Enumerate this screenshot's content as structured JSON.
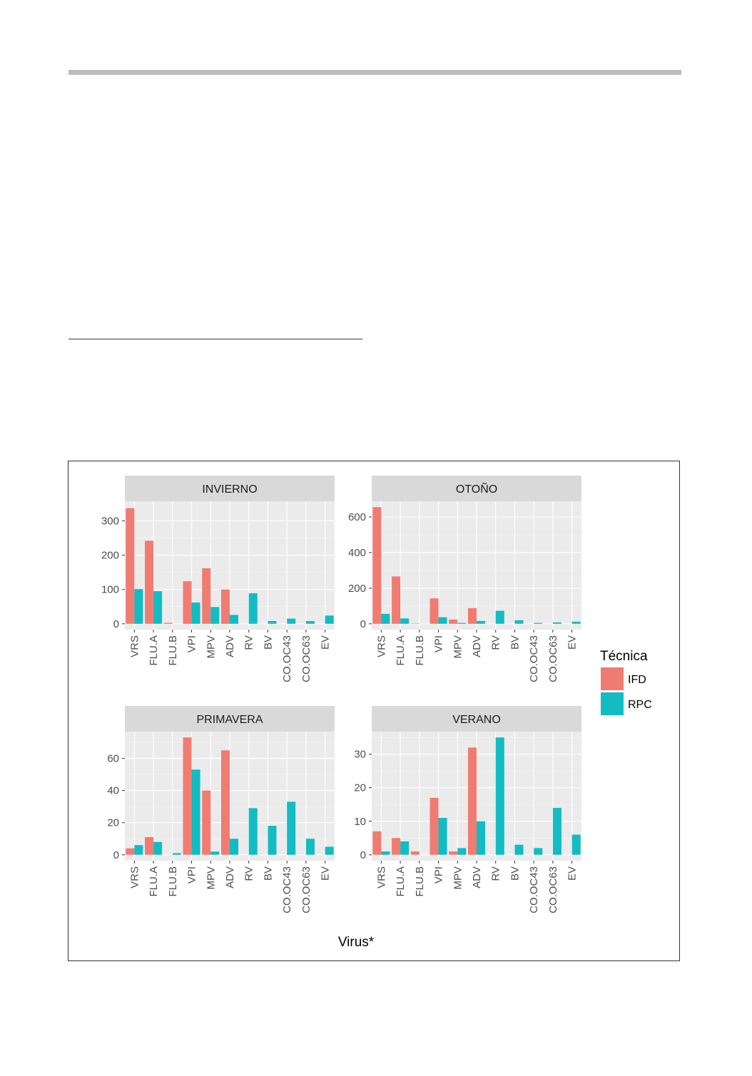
{
  "chart_data": {
    "type": "bar",
    "xlabel": "Virus*",
    "legend": {
      "title": "Técnica",
      "position": "right",
      "entries": [
        "IFD",
        "RPC"
      ]
    },
    "colors": {
      "IFD": "#f07b72",
      "RPC": "#12bcc2"
    },
    "categories": [
      "VRS",
      "FLU.A",
      "FLU.B",
      "VPI",
      "MPV",
      "ADV",
      "RV",
      "BV",
      "CO.OC43",
      "CO.OC63",
      "EV"
    ],
    "grid": true,
    "panels": [
      {
        "title": "INVIERNO",
        "ylim": [
          0,
          340
        ],
        "yticks": [
          0,
          100,
          200,
          300
        ],
        "series": [
          {
            "name": "IFD",
            "values": [
              337,
              242,
              3,
              124,
              162,
              100,
              0,
              0,
              0,
              0,
              0
            ]
          },
          {
            "name": "RPC",
            "values": [
              101,
              95,
              0,
              62,
              49,
              26,
              89,
              8,
              15,
              8,
              24
            ]
          }
        ]
      },
      {
        "title": "OTOÑO",
        "ylim": [
          0,
          655
        ],
        "yticks": [
          0,
          200,
          400,
          600
        ],
        "series": [
          {
            "name": "IFD",
            "values": [
              655,
              266,
              2,
              143,
              24,
              88,
              0,
              0,
              0,
              0,
              0
            ]
          },
          {
            "name": "RPC",
            "values": [
              56,
              30,
              0,
              37,
              5,
              16,
              73,
              20,
              5,
              8,
              12
            ]
          }
        ]
      },
      {
        "title": "PRIMAVERA",
        "ylim": [
          0,
          73
        ],
        "yticks": [
          0,
          20,
          40,
          60
        ],
        "series": [
          {
            "name": "IFD",
            "values": [
              4,
              11,
              0,
              73,
              40,
              65,
              0,
              0,
              0,
              0,
              0
            ]
          },
          {
            "name": "RPC",
            "values": [
              6,
              8,
              1,
              53,
              2,
              10,
              29,
              18,
              33,
              10,
              5
            ]
          }
        ]
      },
      {
        "title": "VERANO",
        "ylim": [
          0,
          35
        ],
        "yticks": [
          0,
          10,
          20,
          30
        ],
        "series": [
          {
            "name": "IFD",
            "values": [
              7,
              5,
              1,
              17,
              1,
              32,
              0,
              0,
              0,
              0,
              0
            ]
          },
          {
            "name": "RPC",
            "values": [
              1,
              4,
              0,
              11,
              2,
              10,
              35,
              3,
              2,
              14,
              6
            ]
          }
        ]
      }
    ]
  }
}
